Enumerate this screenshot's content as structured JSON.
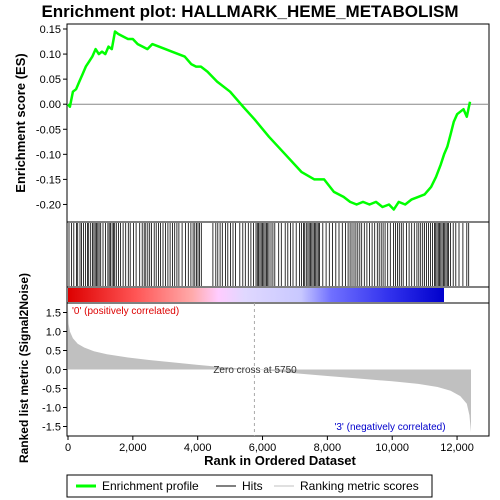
{
  "chart_data": {
    "type": "line",
    "title": "Enrichment plot: HALLMARK_HEME_METABOLISM",
    "xlabel": "Rank in Ordered Dataset",
    "xlim": [
      0,
      12500
    ],
    "x_ticks": [
      0,
      2000,
      4000,
      6000,
      8000,
      10000,
      12000
    ],
    "x_tick_labels": [
      "0",
      "2,000",
      "4,000",
      "6,000",
      "8,000",
      "10,000",
      "12,000"
    ],
    "es_panel": {
      "ylabel": "Enrichment score (ES)",
      "ylim": [
        -0.235,
        0.16
      ],
      "y_ticks": [
        0.15,
        0.1,
        0.05,
        0.0,
        -0.05,
        -0.1,
        -0.15,
        -0.2
      ],
      "y_tick_labels": [
        "0.15",
        "0.10",
        "0.05",
        "0.00",
        "-0.05",
        "-0.10",
        "-0.15",
        "-0.20"
      ],
      "grid": false,
      "series": [
        {
          "name": "Enrichment profile",
          "color": "#00ff00",
          "x": [
            0,
            60,
            150,
            250,
            350,
            450,
            550,
            650,
            750,
            850,
            950,
            1050,
            1150,
            1250,
            1350,
            1450,
            1550,
            1700,
            1850,
            2000,
            2150,
            2300,
            2450,
            2600,
            2800,
            3000,
            3200,
            3400,
            3600,
            3800,
            3950,
            4100,
            4300,
            4600,
            5000,
            5400,
            5750,
            6200,
            6700,
            7200,
            7600,
            7900,
            8200,
            8500,
            8700,
            8900,
            9100,
            9300,
            9500,
            9700,
            9900,
            10050,
            10200,
            10400,
            10600,
            10800,
            11000,
            11200,
            11350,
            11500,
            11600,
            11700,
            11800,
            11900,
            12000,
            12100,
            12200,
            12300,
            12400
          ],
          "y": [
            0.0,
            -0.005,
            0.025,
            0.03,
            0.045,
            0.06,
            0.075,
            0.085,
            0.095,
            0.11,
            0.1,
            0.105,
            0.1,
            0.115,
            0.11,
            0.145,
            0.14,
            0.135,
            0.13,
            0.13,
            0.12,
            0.115,
            0.11,
            0.12,
            0.115,
            0.11,
            0.105,
            0.1,
            0.095,
            0.08,
            0.075,
            0.075,
            0.065,
            0.045,
            0.025,
            -0.005,
            -0.03,
            -0.065,
            -0.1,
            -0.135,
            -0.15,
            -0.15,
            -0.175,
            -0.185,
            -0.195,
            -0.2,
            -0.195,
            -0.2,
            -0.195,
            -0.205,
            -0.2,
            -0.21,
            -0.195,
            -0.2,
            -0.19,
            -0.185,
            -0.18,
            -0.165,
            -0.145,
            -0.12,
            -0.1,
            -0.085,
            -0.06,
            -0.035,
            -0.02,
            -0.015,
            -0.01,
            -0.025,
            0.005
          ]
        }
      ]
    },
    "hits_panel": {
      "series_name": "Hits",
      "color": "#000000",
      "positions": [
        30,
        110,
        180,
        260,
        300,
        370,
        420,
        480,
        540,
        600,
        640,
        700,
        760,
        800,
        840,
        880,
        920,
        960,
        1010,
        1080,
        1160,
        1230,
        1270,
        1310,
        1360,
        1400,
        1440,
        1490,
        1560,
        1620,
        1700,
        1780,
        1860,
        1920,
        2020,
        2100,
        2210,
        2290,
        2350,
        2400,
        2460,
        2520,
        2580,
        2660,
        2720,
        2790,
        2850,
        2930,
        3010,
        3080,
        3150,
        3220,
        3290,
        3360,
        3420,
        3520,
        3620,
        3710,
        3790,
        3860,
        3910,
        3960,
        4010,
        4060,
        4110,
        4470,
        4560,
        4620,
        4690,
        4760,
        4860,
        4930,
        5010,
        5090,
        5170,
        5300,
        5390,
        5470,
        5560,
        5640,
        5720,
        5800,
        5840,
        5880,
        5920,
        5960,
        6000,
        6040,
        6080,
        6120,
        6160,
        6200,
        6260,
        6320,
        6380,
        6500,
        6580,
        6700,
        6780,
        6860,
        6940,
        7040,
        7140,
        7200,
        7260,
        7300,
        7350,
        7400,
        7440,
        7480,
        7520,
        7560,
        7600,
        7640,
        7680,
        7720,
        7760,
        7860,
        7960,
        8060,
        8160,
        8260,
        8360,
        8460,
        8560,
        8640,
        8700,
        8760,
        8820,
        8880,
        8940,
        9000,
        9060,
        9140,
        9220,
        9300,
        9380,
        9460,
        9540,
        9600,
        9660,
        9720,
        9780,
        9860,
        9940,
        10040,
        10100,
        10160,
        10220,
        10280,
        10340,
        10440,
        10520,
        10600,
        10680,
        10760,
        10820,
        10880,
        10940,
        11000,
        11060,
        11120,
        11180,
        11240,
        11300,
        11340,
        11380,
        11420,
        11460,
        11500,
        11540,
        11580,
        11620,
        11660,
        11700,
        11740,
        11800,
        11880,
        11960,
        12060,
        12180,
        12300,
        12360
      ]
    },
    "ranking_bar": {
      "gradient_colors": [
        "#dd0000",
        "#ff5555",
        "#ffaaaa",
        "#ffccff",
        "#e0d8ff",
        "#c8c8ff",
        "#7070ff",
        "#3333ee",
        "#0000cc"
      ],
      "gradient_stops": [
        0,
        0.18,
        0.33,
        0.4,
        0.47,
        0.62,
        0.7,
        0.85,
        1
      ]
    },
    "metric_panel": {
      "series_name": "Ranking metric scores",
      "ylabel": "Ranked list metric (Signal2Noise)",
      "ylim": [
        -1.75,
        1.75
      ],
      "y_ticks": [
        1.5,
        1.0,
        0.5,
        0.0,
        -0.5,
        -1.0,
        -1.5
      ],
      "y_tick_labels": [
        "1.5",
        "1.0",
        "0.5",
        "0.0",
        "-0.5",
        "-1.0",
        "-1.5"
      ],
      "color": "#c0c0c0",
      "x": [
        0,
        20,
        60,
        150,
        300,
        500,
        800,
        1200,
        1800,
        2500,
        3200,
        4000,
        4800,
        5400,
        5750,
        6200,
        7000,
        8000,
        9000,
        10000,
        10800,
        11400,
        11800,
        12100,
        12300,
        12380,
        12430
      ],
      "y": [
        1.65,
        1.2,
        1.0,
        0.82,
        0.68,
        0.58,
        0.48,
        0.4,
        0.32,
        0.25,
        0.19,
        0.12,
        0.06,
        0.02,
        0.0,
        -0.03,
        -0.1,
        -0.17,
        -0.24,
        -0.31,
        -0.38,
        -0.46,
        -0.56,
        -0.7,
        -0.9,
        -1.2,
        -1.65
      ],
      "zero_cross_position": 5750,
      "zero_cross_label": "Zero cross at 5750",
      "positive_label": "'0' (positively correlated)",
      "negative_label": "'3' (negatively correlated)",
      "positive_color": "#dd0000",
      "negative_color": "#0000cc"
    },
    "legend": {
      "placement": "bottom",
      "entries": [
        {
          "label": "Enrichment profile",
          "color": "#00ff00",
          "style": "thick"
        },
        {
          "label": "Hits",
          "color": "#000000",
          "style": "thin"
        },
        {
          "label": "Ranking metric scores",
          "color": "#c0c0c0",
          "style": "thin"
        }
      ]
    }
  }
}
